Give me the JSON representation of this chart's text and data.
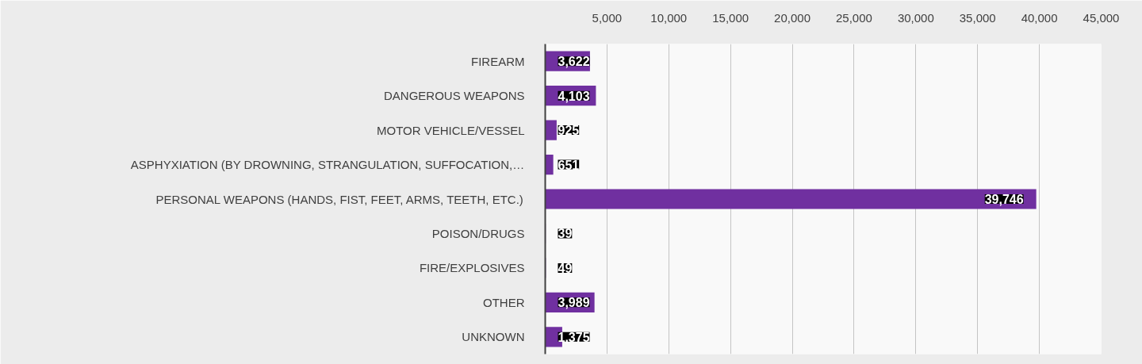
{
  "chart_data": {
    "type": "bar",
    "orientation": "horizontal",
    "categories": [
      "FIREARM",
      "DANGEROUS WEAPONS",
      "MOTOR VEHICLE/VESSEL",
      "ASPHYXIATION (BY DROWNING, STRANGULATION, SUFFOCATION,…",
      "PERSONAL WEAPONS (HANDS, FIST, FEET, ARMS, TEETH, ETC.)",
      "POISON/DRUGS",
      "FIRE/EXPLOSIVES",
      "OTHER",
      "UNKNOWN"
    ],
    "values": [
      3622,
      4103,
      925,
      651,
      39746,
      39,
      49,
      3989,
      1375
    ],
    "value_labels": [
      "3,622",
      "4,103",
      "925",
      "651",
      "39,746",
      "39",
      "49",
      "3,989",
      "1,375"
    ],
    "color": "#7030a0",
    "xlim": [
      0,
      45000
    ],
    "xticks": [
      {
        "value": 5000,
        "label": "5,000"
      },
      {
        "value": 10000,
        "label": "10,000"
      },
      {
        "value": 15000,
        "label": "15,000"
      },
      {
        "value": 20000,
        "label": "20,000"
      },
      {
        "value": 25000,
        "label": "25,000"
      },
      {
        "value": 30000,
        "label": "30,000"
      },
      {
        "value": 35000,
        "label": "35,000"
      },
      {
        "value": 40000,
        "label": "40,000"
      },
      {
        "value": 45000,
        "label": "45,000"
      }
    ],
    "grid": "x"
  }
}
